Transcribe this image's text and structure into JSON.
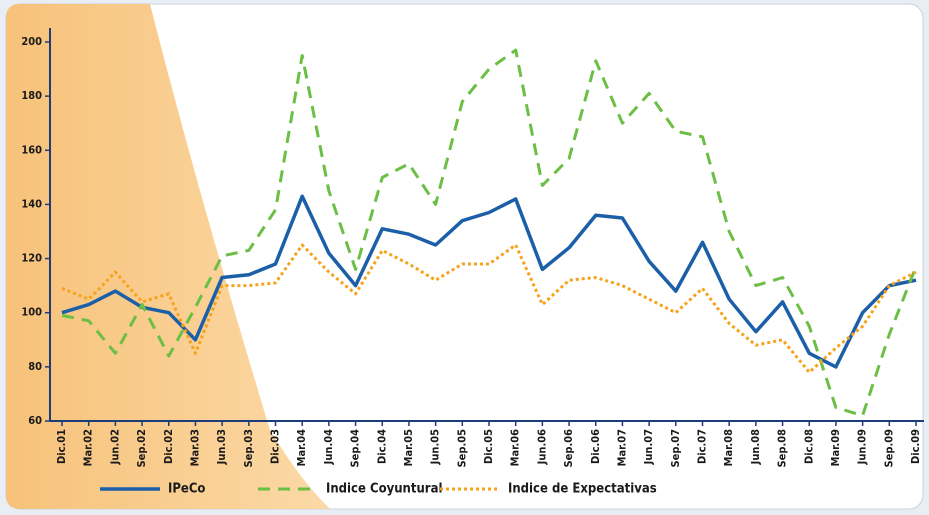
{
  "chart_data": {
    "type": "line",
    "categories": [
      "Dic.01",
      "Mar.02",
      "Jun.02",
      "Sep.02",
      "Dic.02",
      "Mar.03",
      "Jun.03",
      "Sep.03",
      "Dic.03",
      "Mar.04",
      "Jun.04",
      "Sep.04",
      "Dic.04",
      "Mar.05",
      "Jun.05",
      "Sep.05",
      "Dic.05",
      "Mar.06",
      "Jun.06",
      "Sep.06",
      "Dic.06",
      "Mar.07",
      "Jun.07",
      "Sep.07",
      "Dic.07",
      "Mar.08",
      "Jun.08",
      "Sep.08",
      "Dic.08",
      "Mar.09",
      "Jun.09",
      "Sep.09",
      "Dic.09"
    ],
    "series": [
      {
        "name": "IPeCo",
        "color": "#1b5fa8",
        "dash": "solid",
        "values": [
          100,
          103,
          108,
          102,
          100,
          90,
          113,
          114,
          118,
          143,
          122,
          110,
          131,
          129,
          125,
          134,
          137,
          142,
          116,
          124,
          136,
          135,
          119,
          108,
          126,
          105,
          93,
          104,
          85,
          80,
          100,
          110,
          112
        ]
      },
      {
        "name": "Indice Coyuntural",
        "color": "#6cbf45",
        "dash": "dashed",
        "values": [
          99,
          97,
          85,
          103,
          84,
          102,
          121,
          123,
          138,
          195,
          145,
          116,
          150,
          155,
          140,
          178,
          190,
          197,
          147,
          157,
          193,
          170,
          181,
          167,
          165,
          130,
          110,
          113,
          95,
          65,
          62,
          92,
          117
        ]
      },
      {
        "name": "Indice de Expectativas",
        "color": "#f7a21b",
        "dash": "dotted",
        "values": [
          109,
          105,
          115,
          104,
          107,
          85,
          110,
          110,
          111,
          125,
          115,
          107,
          123,
          118,
          112,
          118,
          118,
          125,
          103,
          112,
          113,
          110,
          105,
          100,
          109,
          96,
          88,
          90,
          78,
          87,
          95,
          110,
          115
        ]
      }
    ],
    "ylim": [
      60,
      200
    ],
    "yticks": [
      60,
      80,
      100,
      120,
      140,
      160,
      180,
      200
    ]
  }
}
